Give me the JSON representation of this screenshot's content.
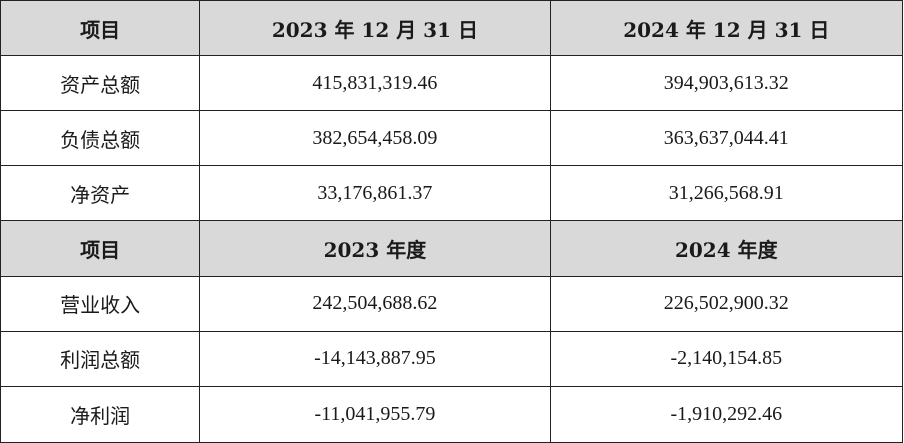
{
  "balance_header": {
    "item_label": "项目",
    "col_2023": "2023 年 12 月 31 日",
    "col_2024": "2024 年 12 月 31 日"
  },
  "balance_rows": [
    {
      "label": "资产总额",
      "v2023": "415,831,319.46",
      "v2024": "394,903,613.32"
    },
    {
      "label": "负债总额",
      "v2023": "382,654,458.09",
      "v2024": "363,637,044.41"
    },
    {
      "label": "净资产",
      "v2023": "33,176,861.37",
      "v2024": "31,266,568.91"
    }
  ],
  "income_header": {
    "item_label": "项目",
    "col_2023": "2023 年度",
    "col_2024": "2024 年度"
  },
  "income_rows": [
    {
      "label": "营业收入",
      "v2023": "242,504,688.62",
      "v2024": "226,502,900.32"
    },
    {
      "label": "利润总额",
      "v2023": "-14,143,887.95",
      "v2024": "-2,140,154.85"
    },
    {
      "label": "净利润",
      "v2023": "-11,041,955.79",
      "v2024": "-1,910,292.46"
    }
  ],
  "colors": {
    "header_bg": "#d9d9d9",
    "border": "#222222",
    "text": "#1a1a1a"
  }
}
